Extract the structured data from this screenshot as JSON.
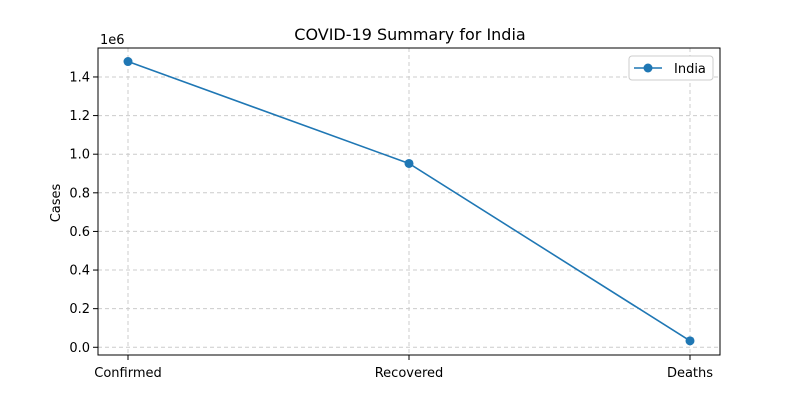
{
  "chart_data": {
    "type": "line",
    "title": "COVID-19 Summary for India",
    "xlabel": "",
    "ylabel": "Cases",
    "y_offset_label": "1e6",
    "categories": [
      "Confirmed",
      "Recovered",
      "Deaths"
    ],
    "series": [
      {
        "name": "India",
        "values": [
          1480000,
          952000,
          33400
        ],
        "color": "#1f77b4"
      }
    ],
    "ylim": [
      -40000,
      1550000
    ],
    "yticks": [
      0,
      200000,
      400000,
      600000,
      800000,
      1000000,
      1200000,
      1400000
    ],
    "ytick_labels": [
      "0.0",
      "0.2",
      "0.4",
      "0.6",
      "0.8",
      "1.0",
      "1.2",
      "1.4"
    ],
    "grid": true,
    "legend": "top-right"
  }
}
